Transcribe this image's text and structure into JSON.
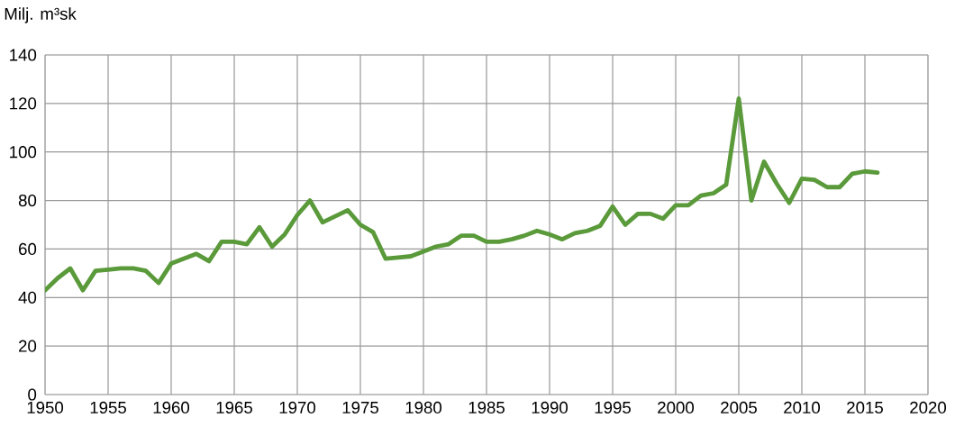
{
  "chart_data": {
    "type": "line",
    "ylabel": "Milj. m³sk",
    "x": [
      1950,
      1951,
      1952,
      1953,
      1954,
      1955,
      1956,
      1957,
      1958,
      1959,
      1960,
      1961,
      1962,
      1963,
      1964,
      1965,
      1966,
      1967,
      1968,
      1969,
      1970,
      1971,
      1972,
      1973,
      1974,
      1975,
      1976,
      1977,
      1978,
      1979,
      1980,
      1981,
      1982,
      1983,
      1984,
      1985,
      1986,
      1987,
      1988,
      1989,
      1990,
      1991,
      1992,
      1993,
      1994,
      1995,
      1996,
      1997,
      1998,
      1999,
      2000,
      2001,
      2002,
      2003,
      2004,
      2005,
      2006,
      2007,
      2008,
      2009,
      2010,
      2011,
      2012,
      2013,
      2014,
      2015,
      2016
    ],
    "series": [
      {
        "color": "#5a9a3a",
        "values": [
          43,
          48,
          52,
          43,
          51,
          51.5,
          52,
          52,
          51,
          46,
          54,
          56,
          58,
          55,
          63,
          63,
          62,
          69,
          61,
          66,
          74,
          80,
          71,
          73.5,
          76,
          70,
          67,
          56,
          56.5,
          57,
          59,
          61,
          62,
          65.5,
          65.5,
          63,
          63,
          64,
          65.5,
          67.5,
          66,
          64,
          66.5,
          67.5,
          69.5,
          77.5,
          70,
          74.5,
          74.5,
          72.5,
          78,
          78,
          82,
          83,
          86.5,
          122,
          80,
          96,
          87,
          79,
          89,
          88.5,
          85.5,
          85.5,
          91,
          92,
          91.5
        ]
      }
    ],
    "xlim": [
      1950,
      2020
    ],
    "xticks": [
      1950,
      1955,
      1960,
      1965,
      1970,
      1975,
      1980,
      1985,
      1990,
      1995,
      2000,
      2005,
      2010,
      2015,
      2020
    ],
    "ylim": [
      0,
      140
    ],
    "yticks": [
      0,
      20,
      40,
      60,
      80,
      100,
      120,
      140
    ],
    "grid": true,
    "legend": false,
    "marker": "none",
    "line_style": "solid"
  }
}
